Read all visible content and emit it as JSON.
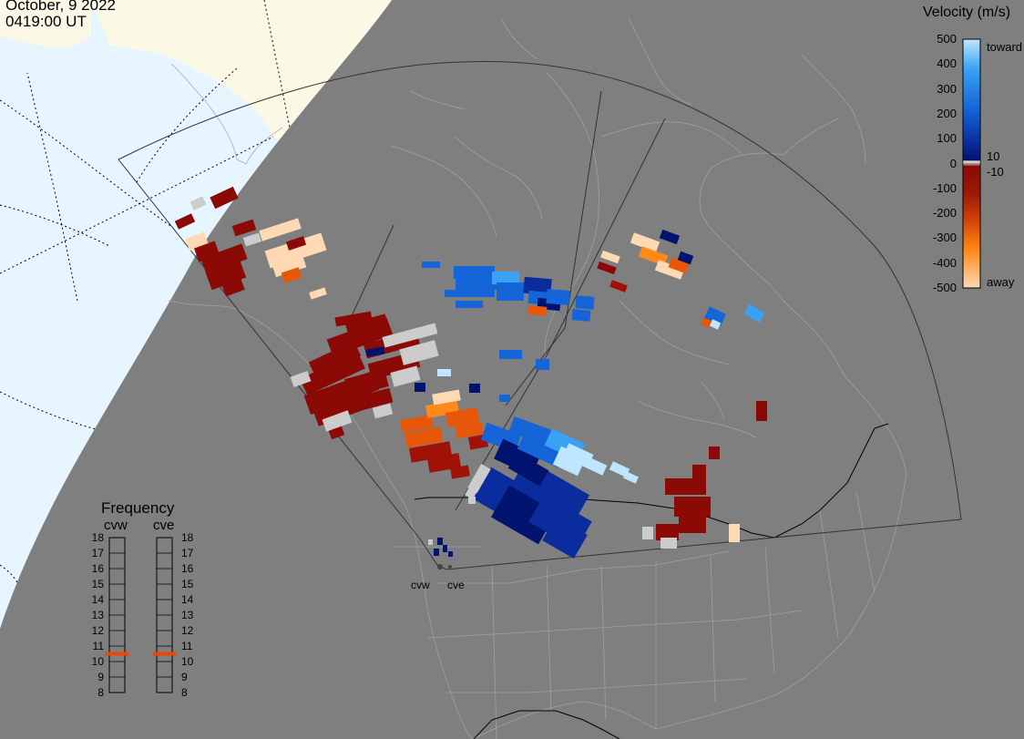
{
  "header": {
    "date": "October, 9 2022",
    "time": "0419:00 UT"
  },
  "velocity_scale": {
    "title": "Velocity (m/s)",
    "ticks": [
      "500",
      "400",
      "300",
      "200",
      "100",
      "0",
      "-100",
      "-200",
      "-300",
      "-400",
      "-500"
    ],
    "tick_values": [
      500,
      400,
      300,
      200,
      100,
      0,
      -100,
      -200,
      -300,
      -400,
      -500
    ],
    "toward_label": "toward",
    "away_label": "away",
    "threshold_pos_label": "10",
    "threshold_neg_label": "-10",
    "range": [
      -500,
      500
    ],
    "colors": {
      "toward_high": "#bfe6ff",
      "toward_mid": "#1f7fe0",
      "toward_low": "#00136e",
      "away_low": "#8a0a06",
      "away_mid": "#e8560a",
      "away_high": "#ffd9b3",
      "ground_scatter": "#cccccc"
    }
  },
  "frequency": {
    "title": "Frequency",
    "radars": [
      {
        "name": "cvw",
        "value_mhz": 10.5
      },
      {
        "name": "cve",
        "value_mhz": 10.5
      }
    ],
    "ticks": [
      "18",
      "17",
      "16",
      "15",
      "14",
      "13",
      "12",
      "11",
      "10",
      "9",
      "8"
    ],
    "range": [
      8,
      18
    ],
    "marker_color": "#e8480a"
  },
  "sites": [
    {
      "name": "cvw"
    },
    {
      "name": "cve"
    }
  ],
  "map": {
    "ocean_color": "#e6f5ff",
    "land_sunlit_color": "#fbf8e6",
    "night_color": "#7f7f7f",
    "outline_color": "#999999",
    "border_color": "#000000"
  }
}
